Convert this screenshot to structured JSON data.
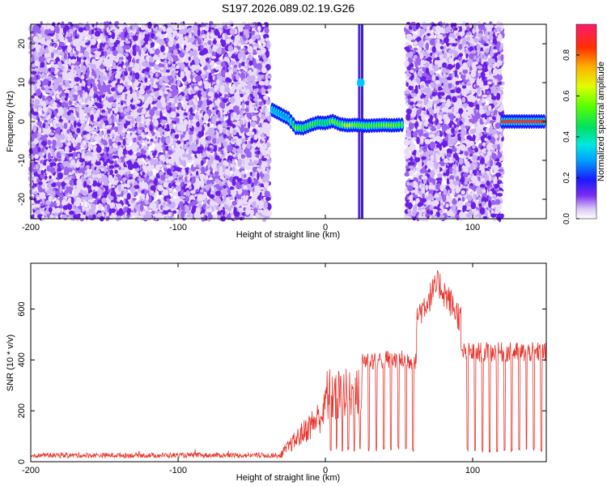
{
  "title": "S197.2026.089.02.19.G26",
  "chart_data": [
    {
      "type": "heatmap",
      "xlabel": "Height of straight line (km)",
      "ylabel": "Frequency (Hz)",
      "xlim": [
        -200,
        150
      ],
      "ylim": [
        -25,
        25
      ],
      "xticks": [
        -200,
        -100,
        0,
        100
      ],
      "yticks": [
        -20,
        -10,
        0,
        10,
        20
      ],
      "colorbar": {
        "label": "Normalized spectral amplitude",
        "range": [
          0,
          0.95
        ],
        "ticks": [
          0.0,
          0.2,
          0.4,
          0.6,
          0.8
        ]
      },
      "noise_regions": [
        [
          -200,
          -38
        ],
        [
          55,
          120
        ]
      ],
      "blank_regions": [
        [
          -38,
          55
        ],
        [
          120,
          150
        ]
      ],
      "signal_track": {
        "x": [
          -36,
          -30,
          -25,
          -20,
          -15,
          -10,
          -5,
          0,
          5,
          10,
          15,
          20,
          28,
          35,
          40,
          45,
          50,
          54,
          120,
          125,
          130,
          135,
          140,
          145,
          150
        ],
        "y": [
          3,
          1.8,
          0.8,
          -1.6,
          -1.7,
          -0.9,
          -0.3,
          -0.4,
          0.1,
          -0.7,
          -1.0,
          -0.9,
          -1.1,
          -1.0,
          -0.9,
          -1.0,
          -0.9,
          -0.8,
          0,
          0,
          0,
          0,
          0,
          0,
          0
        ],
        "amplitude": [
          0.35,
          0.3,
          0.3,
          0.6,
          0.5,
          0.55,
          0.5,
          0.45,
          0.6,
          0.55,
          0.7,
          0.6,
          0.55,
          0.55,
          0.6,
          0.6,
          0.55,
          0.5,
          0.9,
          0.9,
          0.92,
          0.9,
          0.93,
          0.9,
          0.9
        ]
      },
      "vertical_spikes": [
        {
          "x": 23,
          "color": "#3300cc"
        },
        {
          "x": 25,
          "color": "#1a00aa"
        }
      ]
    },
    {
      "type": "line",
      "xlabel": "Height of straight line (km)",
      "ylabel": "SNR (10 * v/v)",
      "xlim": [
        -200,
        150
      ],
      "ylim": [
        0,
        780
      ],
      "xticks": [
        -200,
        -100,
        0,
        100
      ],
      "yticks": [
        0,
        200,
        400,
        600
      ],
      "color": "#e8342d",
      "segments": [
        {
          "x": [
            -200,
            -30
          ],
          "base": 25,
          "amp": 10,
          "kind": "noise"
        },
        {
          "x": [
            -30,
            0
          ],
          "base_start": 30,
          "base_end": 200,
          "amp": 60,
          "kind": "ramp"
        },
        {
          "x": [
            0,
            25
          ],
          "base": 260,
          "amp": 110,
          "kind": "pulses",
          "period": 4,
          "low": 40
        },
        {
          "x": [
            25,
            62
          ],
          "base": 400,
          "amp": 40,
          "kind": "pulses",
          "period": 5,
          "low": 40
        },
        {
          "x": [
            62,
            92
          ],
          "base_start": 570,
          "base_mid": 700,
          "base_end": 560,
          "amp": 60,
          "kind": "hump"
        },
        {
          "x": [
            92,
            150
          ],
          "base": 430,
          "amp": 40,
          "kind": "pulses",
          "period": 5,
          "low": 35
        }
      ]
    }
  ]
}
